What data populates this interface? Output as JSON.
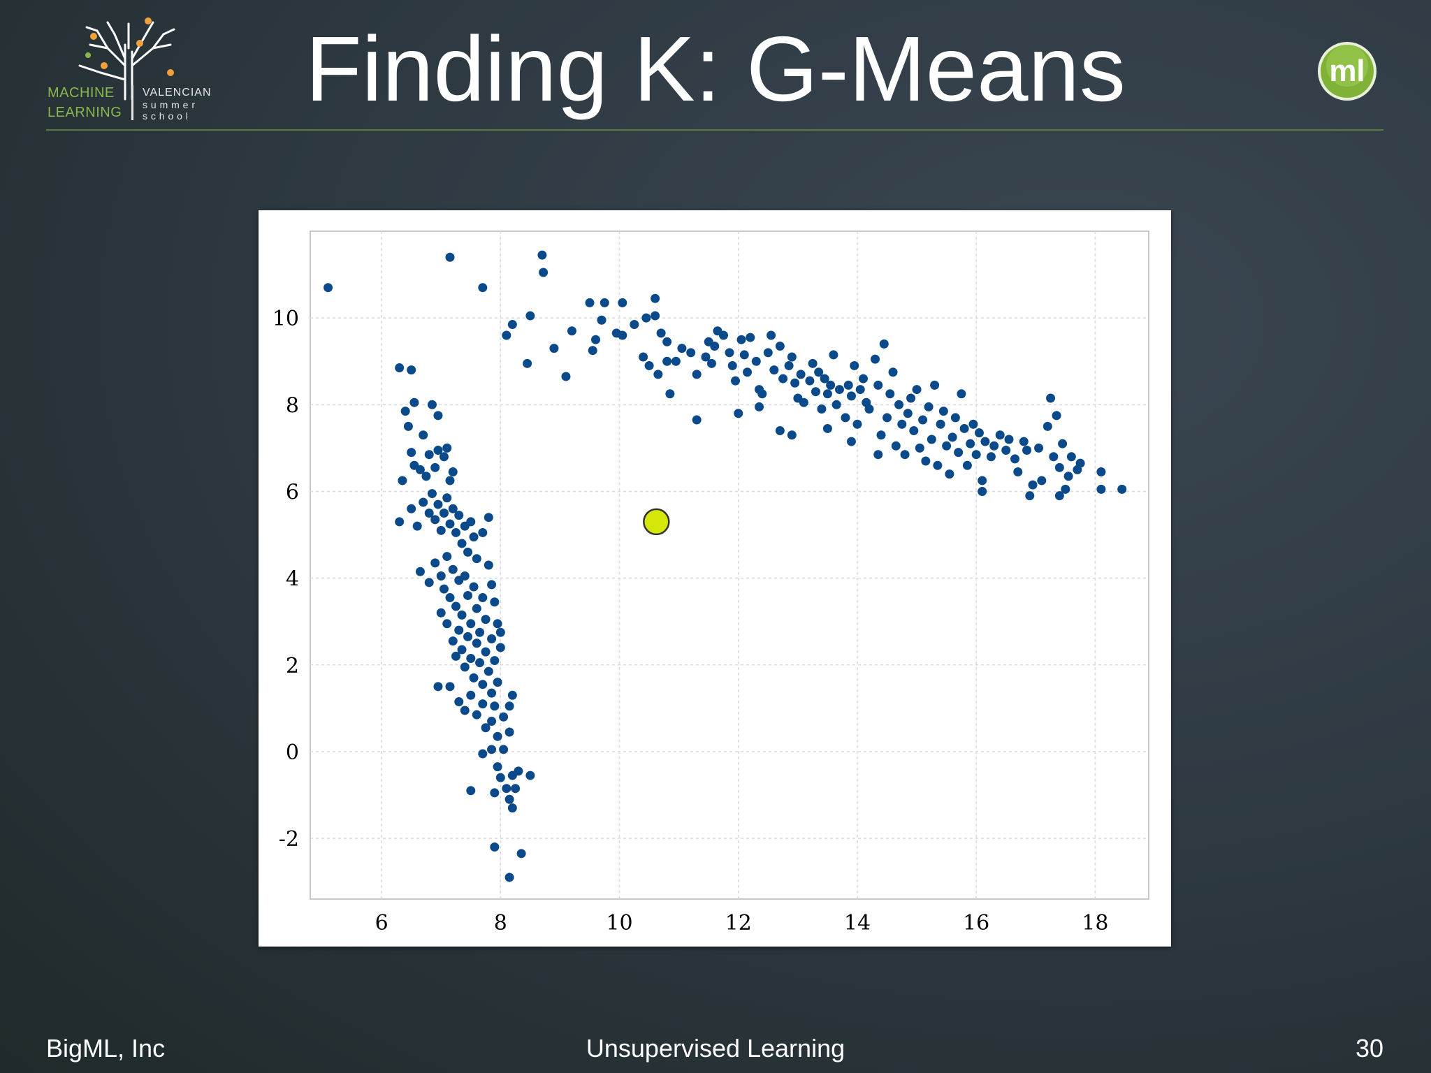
{
  "slide": {
    "title": "Finding K: G-Means",
    "footer_left": "BigML, Inc",
    "footer_center": "Unsupervised Learning",
    "page_number": "30"
  },
  "logo": {
    "left_line1": "MACHINE",
    "left_line2": "LEARNING",
    "right_line1": "VALENCIAN",
    "right_line2": "s u m m e r",
    "right_line3": "s c h o o l",
    "icon": "tree-icon",
    "color": "#8ab84a",
    "accent": "#f2a13a"
  },
  "badge": {
    "label": "ml",
    "icon": "bigml-badge-icon",
    "color": "#7fb236"
  },
  "chart_data": {
    "type": "scatter",
    "xlim": [
      4.8,
      18.9
    ],
    "ylim": [
      -3.4,
      12
    ],
    "x_ticks": [
      6,
      8,
      10,
      12,
      14,
      16,
      18
    ],
    "y_ticks": [
      -2,
      0,
      2,
      4,
      6,
      8,
      10
    ],
    "x_tick_labels": [
      "6",
      "8",
      "10",
      "12",
      "14",
      "16",
      "18"
    ],
    "y_tick_labels": [
      "-2",
      "0",
      "2",
      "4",
      "6",
      "8",
      "10"
    ],
    "grid": true,
    "point_color": "#0b4a8a",
    "centroid_color": "#d4e60a",
    "centroids": [
      [
        10.62,
        5.3
      ]
    ],
    "points": [
      [
        5.1,
        10.7
      ],
      [
        7.15,
        11.4
      ],
      [
        7.7,
        10.7
      ],
      [
        8.7,
        11.45
      ],
      [
        8.72,
        11.05
      ],
      [
        8.1,
        9.6
      ],
      [
        8.2,
        9.85
      ],
      [
        8.5,
        10.05
      ],
      [
        8.45,
        8.95
      ],
      [
        8.9,
        9.3
      ],
      [
        9.2,
        9.7
      ],
      [
        9.1,
        8.65
      ],
      [
        9.55,
        9.25
      ],
      [
        9.6,
        9.5
      ],
      [
        9.5,
        10.35
      ],
      [
        9.7,
        9.95
      ],
      [
        9.75,
        10.35
      ],
      [
        10.05,
        10.35
      ],
      [
        9.95,
        9.65
      ],
      [
        10.05,
        9.6
      ],
      [
        10.25,
        9.85
      ],
      [
        10.45,
        10.0
      ],
      [
        10.6,
        10.05
      ],
      [
        10.6,
        10.45
      ],
      [
        10.7,
        9.65
      ],
      [
        10.4,
        9.1
      ],
      [
        10.5,
        8.9
      ],
      [
        10.8,
        9.45
      ],
      [
        10.65,
        8.7
      ],
      [
        10.8,
        9.0
      ],
      [
        10.95,
        9.0
      ],
      [
        10.85,
        8.25
      ],
      [
        11.05,
        9.3
      ],
      [
        11.2,
        9.2
      ],
      [
        11.3,
        8.7
      ],
      [
        11.45,
        9.1
      ],
      [
        11.5,
        9.45
      ],
      [
        11.6,
        9.35
      ],
      [
        11.65,
        9.7
      ],
      [
        11.55,
        8.95
      ],
      [
        11.75,
        9.6
      ],
      [
        11.85,
        9.2
      ],
      [
        11.9,
        8.9
      ],
      [
        11.95,
        8.55
      ],
      [
        12.05,
        9.5
      ],
      [
        12.1,
        9.15
      ],
      [
        12.15,
        8.75
      ],
      [
        12.2,
        9.55
      ],
      [
        12.3,
        9.0
      ],
      [
        12.35,
        8.35
      ],
      [
        12.4,
        8.25
      ],
      [
        12.5,
        9.2
      ],
      [
        12.55,
        9.6
      ],
      [
        12.6,
        8.8
      ],
      [
        12.7,
        9.35
      ],
      [
        12.75,
        8.6
      ],
      [
        12.85,
        8.9
      ],
      [
        12.9,
        9.1
      ],
      [
        12.95,
        8.5
      ],
      [
        13.0,
        8.15
      ],
      [
        13.05,
        8.7
      ],
      [
        13.1,
        8.05
      ],
      [
        13.2,
        8.55
      ],
      [
        13.25,
        8.95
      ],
      [
        13.3,
        8.3
      ],
      [
        13.35,
        8.75
      ],
      [
        13.4,
        7.9
      ],
      [
        13.45,
        8.6
      ],
      [
        13.5,
        8.25
      ],
      [
        13.55,
        8.45
      ],
      [
        13.6,
        9.15
      ],
      [
        13.65,
        8.0
      ],
      [
        13.7,
        8.35
      ],
      [
        13.8,
        7.7
      ],
      [
        13.85,
        8.45
      ],
      [
        13.9,
        8.2
      ],
      [
        13.95,
        8.9
      ],
      [
        14.0,
        7.55
      ],
      [
        14.05,
        8.35
      ],
      [
        14.1,
        8.6
      ],
      [
        14.15,
        8.05
      ],
      [
        14.2,
        7.9
      ],
      [
        14.3,
        9.05
      ],
      [
        14.35,
        8.45
      ],
      [
        14.4,
        7.3
      ],
      [
        14.45,
        9.4
      ],
      [
        14.5,
        7.7
      ],
      [
        14.55,
        8.25
      ],
      [
        14.6,
        8.75
      ],
      [
        14.65,
        7.05
      ],
      [
        14.7,
        8.0
      ],
      [
        14.75,
        7.55
      ],
      [
        14.8,
        6.85
      ],
      [
        14.85,
        7.8
      ],
      [
        14.9,
        8.15
      ],
      [
        14.95,
        7.4
      ],
      [
        15.0,
        8.35
      ],
      [
        15.05,
        7.0
      ],
      [
        15.1,
        7.65
      ],
      [
        15.15,
        6.7
      ],
      [
        15.2,
        7.95
      ],
      [
        15.25,
        7.2
      ],
      [
        15.3,
        8.45
      ],
      [
        15.35,
        6.6
      ],
      [
        15.4,
        7.55
      ],
      [
        15.45,
        7.85
      ],
      [
        15.5,
        7.05
      ],
      [
        15.55,
        6.4
      ],
      [
        15.6,
        7.25
      ],
      [
        15.65,
        7.7
      ],
      [
        15.7,
        6.9
      ],
      [
        15.75,
        8.25
      ],
      [
        15.8,
        7.45
      ],
      [
        15.85,
        6.6
      ],
      [
        15.9,
        7.1
      ],
      [
        15.95,
        7.55
      ],
      [
        16.0,
        6.85
      ],
      [
        16.05,
        7.35
      ],
      [
        16.1,
        6.25
      ],
      [
        16.15,
        7.15
      ],
      [
        16.25,
        6.8
      ],
      [
        16.3,
        7.05
      ],
      [
        16.4,
        7.3
      ],
      [
        16.5,
        6.95
      ],
      [
        16.55,
        7.2
      ],
      [
        16.65,
        6.75
      ],
      [
        16.7,
        6.45
      ],
      [
        16.8,
        7.15
      ],
      [
        16.85,
        6.95
      ],
      [
        16.95,
        6.15
      ],
      [
        17.05,
        7.0
      ],
      [
        17.1,
        6.25
      ],
      [
        17.2,
        7.5
      ],
      [
        17.25,
        8.15
      ],
      [
        17.3,
        6.8
      ],
      [
        17.35,
        7.75
      ],
      [
        17.4,
        6.55
      ],
      [
        17.45,
        7.1
      ],
      [
        17.5,
        6.05
      ],
      [
        17.55,
        6.35
      ],
      [
        17.6,
        6.8
      ],
      [
        17.7,
        6.5
      ],
      [
        17.75,
        6.65
      ],
      [
        18.1,
        6.45
      ],
      [
        18.1,
        6.05
      ],
      [
        18.45,
        6.05
      ],
      [
        16.9,
        5.9
      ],
      [
        17.4,
        5.9
      ],
      [
        16.1,
        6.0
      ],
      [
        12.9,
        7.3
      ],
      [
        13.5,
        7.45
      ],
      [
        13.9,
        7.15
      ],
      [
        14.35,
        6.85
      ],
      [
        11.3,
        7.65
      ],
      [
        12.0,
        7.8
      ],
      [
        12.35,
        7.95
      ],
      [
        12.7,
        7.4
      ],
      [
        6.3,
        8.85
      ],
      [
        6.5,
        8.8
      ],
      [
        6.4,
        7.85
      ],
      [
        6.55,
        8.05
      ],
      [
        6.7,
        7.3
      ],
      [
        6.85,
        8.0
      ],
      [
        6.95,
        7.75
      ],
      [
        6.45,
        7.5
      ],
      [
        6.5,
        6.9
      ],
      [
        6.55,
        6.6
      ],
      [
        6.35,
        6.25
      ],
      [
        6.65,
        6.5
      ],
      [
        6.75,
        6.35
      ],
      [
        6.8,
        6.85
      ],
      [
        6.9,
        6.55
      ],
      [
        6.95,
        6.95
      ],
      [
        7.05,
        6.8
      ],
      [
        7.1,
        7.0
      ],
      [
        7.15,
        6.25
      ],
      [
        7.2,
        6.45
      ],
      [
        6.3,
        5.3
      ],
      [
        6.5,
        5.6
      ],
      [
        6.6,
        5.2
      ],
      [
        6.7,
        5.75
      ],
      [
        6.8,
        5.5
      ],
      [
        6.85,
        5.95
      ],
      [
        6.9,
        5.35
      ],
      [
        6.95,
        5.7
      ],
      [
        7.0,
        5.1
      ],
      [
        7.05,
        5.5
      ],
      [
        7.1,
        5.85
      ],
      [
        7.15,
        5.25
      ],
      [
        7.2,
        5.6
      ],
      [
        7.25,
        5.05
      ],
      [
        7.3,
        5.45
      ],
      [
        7.35,
        4.8
      ],
      [
        7.4,
        5.2
      ],
      [
        7.45,
        4.6
      ],
      [
        7.5,
        5.3
      ],
      [
        7.55,
        4.95
      ],
      [
        7.6,
        4.45
      ],
      [
        7.7,
        5.05
      ],
      [
        7.8,
        5.4
      ],
      [
        6.65,
        4.15
      ],
      [
        6.8,
        3.9
      ],
      [
        6.9,
        4.35
      ],
      [
        7.0,
        4.05
      ],
      [
        7.05,
        3.75
      ],
      [
        7.1,
        4.5
      ],
      [
        7.15,
        3.55
      ],
      [
        7.2,
        4.2
      ],
      [
        7.25,
        3.35
      ],
      [
        7.3,
        3.95
      ],
      [
        7.35,
        3.15
      ],
      [
        7.4,
        4.05
      ],
      [
        7.45,
        3.6
      ],
      [
        7.5,
        2.95
      ],
      [
        7.55,
        3.8
      ],
      [
        7.6,
        3.3
      ],
      [
        7.65,
        2.75
      ],
      [
        7.7,
        3.55
      ],
      [
        7.75,
        3.05
      ],
      [
        7.8,
        4.3
      ],
      [
        7.85,
        3.85
      ],
      [
        7.85,
        2.6
      ],
      [
        7.9,
        3.45
      ],
      [
        7.95,
        2.95
      ],
      [
        8.0,
        2.4
      ],
      [
        7.0,
        3.2
      ],
      [
        7.1,
        2.95
      ],
      [
        7.2,
        2.55
      ],
      [
        7.25,
        2.2
      ],
      [
        7.3,
        2.8
      ],
      [
        7.35,
        2.35
      ],
      [
        7.4,
        1.95
      ],
      [
        7.45,
        2.65
      ],
      [
        7.5,
        2.15
      ],
      [
        7.55,
        1.7
      ],
      [
        7.6,
        2.5
      ],
      [
        7.65,
        2.05
      ],
      [
        7.7,
        1.55
      ],
      [
        7.75,
        2.3
      ],
      [
        7.8,
        1.85
      ],
      [
        7.85,
        1.35
      ],
      [
        7.9,
        2.1
      ],
      [
        7.95,
        1.6
      ],
      [
        8.0,
        2.75
      ],
      [
        6.95,
        1.5
      ],
      [
        7.15,
        1.5
      ],
      [
        7.3,
        1.15
      ],
      [
        7.4,
        0.95
      ],
      [
        7.5,
        1.3
      ],
      [
        7.6,
        0.85
      ],
      [
        7.7,
        1.1
      ],
      [
        7.75,
        0.55
      ],
      [
        7.85,
        0.7
      ],
      [
        7.9,
        1.05
      ],
      [
        7.95,
        0.35
      ],
      [
        8.05,
        0.8
      ],
      [
        8.15,
        1.05
      ],
      [
        8.2,
        1.3
      ],
      [
        8.15,
        0.45
      ],
      [
        7.7,
        -0.05
      ],
      [
        7.85,
        0.05
      ],
      [
        7.95,
        -0.35
      ],
      [
        8.0,
        -0.6
      ],
      [
        8.05,
        0.05
      ],
      [
        8.1,
        -0.85
      ],
      [
        8.15,
        -1.1
      ],
      [
        8.2,
        -0.55
      ],
      [
        8.25,
        -0.85
      ],
      [
        8.2,
        -1.3
      ],
      [
        8.3,
        -0.45
      ],
      [
        8.5,
        -0.55
      ],
      [
        7.5,
        -0.9
      ],
      [
        7.9,
        -0.95
      ],
      [
        7.9,
        -2.2
      ],
      [
        8.35,
        -2.35
      ],
      [
        8.15,
        -2.9
      ]
    ]
  }
}
